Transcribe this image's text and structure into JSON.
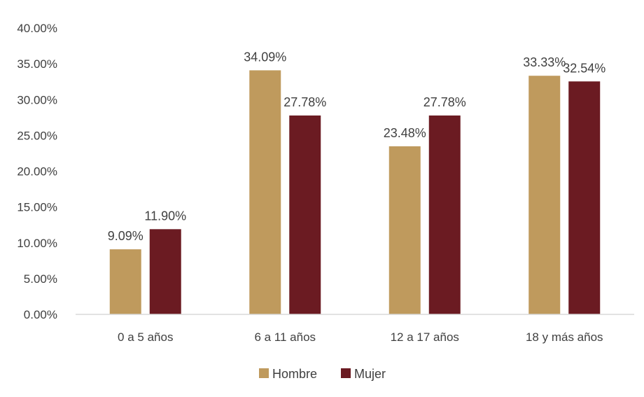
{
  "chart_data": {
    "type": "bar",
    "categories": [
      "0 a 5 años",
      "6 a 11 años",
      "12 a 17 años",
      "18 y más años"
    ],
    "series": [
      {
        "name": "Hombre",
        "values": [
          9.09,
          34.09,
          23.48,
          33.33
        ],
        "labels": [
          "9.09%",
          "34.09%",
          "23.48%",
          "33.33%"
        ],
        "color": "#BF9A5D"
      },
      {
        "name": "Mujer",
        "values": [
          11.9,
          27.78,
          27.78,
          32.54
        ],
        "labels": [
          "11.90%",
          "27.78%",
          "27.78%",
          "32.54%"
        ],
        "color": "#6B1B22"
      }
    ],
    "ylim": [
      0,
      40
    ],
    "yticks": [
      "0.00%",
      "5.00%",
      "10.00%",
      "15.00%",
      "20.00%",
      "25.00%",
      "30.00%",
      "35.00%",
      "40.00%"
    ],
    "grid": false,
    "legend_position": "bottom",
    "axis_color": "#D9D9D9"
  }
}
